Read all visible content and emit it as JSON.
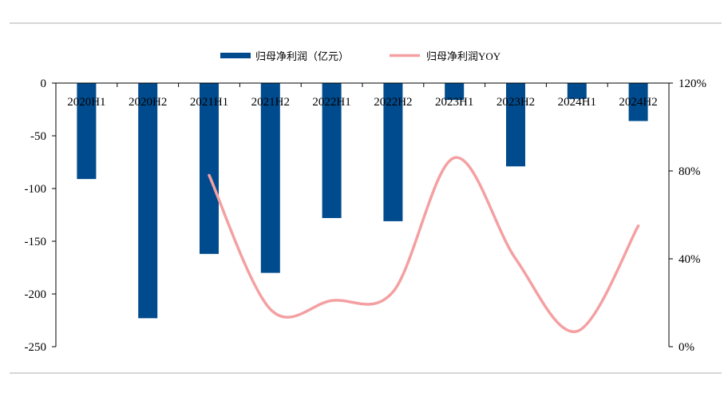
{
  "chart_data": {
    "type": "bar+line",
    "categories": [
      "2020H1",
      "2020H2",
      "2021H1",
      "2021H2",
      "2022H1",
      "2022H2",
      "2023H1",
      "2023H2",
      "2024H1",
      "2024H2"
    ],
    "series": [
      {
        "name": "归母净利润（亿元）",
        "type": "bar",
        "axis": "left",
        "color": "#004B8D",
        "values": [
          -91,
          -223,
          -162,
          -180,
          -128,
          -131,
          -16,
          -79,
          -15,
          -36
        ]
      },
      {
        "name": "归母净利润YOY",
        "type": "line",
        "axis": "right",
        "color": "#F4A0A2",
        "values": [
          null,
          null,
          78,
          17,
          21,
          25,
          86,
          40,
          7,
          55
        ]
      }
    ],
    "y_left": {
      "ylim": [
        -250,
        0
      ],
      "ticks": [
        0,
        -50,
        -100,
        -150,
        -200,
        -250
      ],
      "labels": [
        "0",
        "-50",
        "-100",
        "-150",
        "-200",
        "-250"
      ]
    },
    "y_right": {
      "ylim": [
        0,
        120
      ],
      "ticks": [
        120,
        80,
        40,
        0
      ],
      "labels": [
        "120%",
        "80%",
        "40%",
        "0%"
      ]
    },
    "legend_position": "top-center",
    "grid": false
  }
}
